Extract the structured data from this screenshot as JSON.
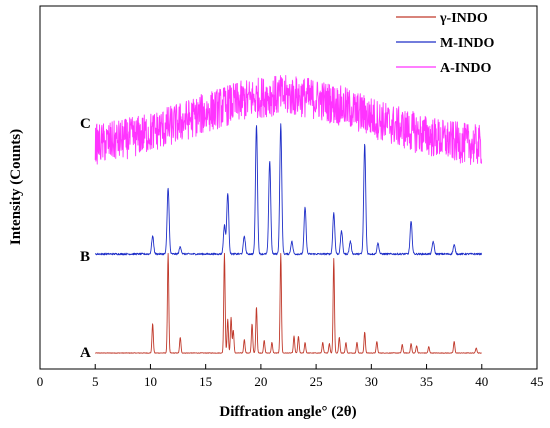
{
  "chart_data": {
    "type": "line",
    "xlabel": "Diffration angle° (2θ)",
    "ylabel": "Intensity (Counts)",
    "xlim": [
      0,
      45
    ],
    "xticks": [
      0,
      5,
      10,
      15,
      20,
      25,
      30,
      35,
      40,
      45
    ],
    "y_tick_labels": "none",
    "legend_position": "top-right",
    "series": [
      {
        "name": "γ-INDO",
        "curve_label": "A",
        "color": "#c0392b",
        "x_range": [
          5,
          40
        ],
        "baseline": 0,
        "peaks": [
          [
            10.2,
            0.28
          ],
          [
            11.6,
            0.95
          ],
          [
            12.7,
            0.15
          ],
          [
            16.7,
            0.95
          ],
          [
            17.0,
            0.32
          ],
          [
            17.3,
            0.34
          ],
          [
            17.5,
            0.22
          ],
          [
            18.5,
            0.13
          ],
          [
            19.2,
            0.28
          ],
          [
            19.6,
            0.44
          ],
          [
            20.3,
            0.12
          ],
          [
            21.0,
            0.1
          ],
          [
            21.8,
            0.95
          ],
          [
            23.0,
            0.16
          ],
          [
            23.4,
            0.16
          ],
          [
            24.0,
            0.1
          ],
          [
            25.6,
            0.1
          ],
          [
            26.2,
            0.09
          ],
          [
            26.6,
            0.9
          ],
          [
            27.1,
            0.15
          ],
          [
            27.7,
            0.1
          ],
          [
            28.7,
            0.1
          ],
          [
            29.4,
            0.2
          ],
          [
            30.5,
            0.11
          ],
          [
            32.8,
            0.08
          ],
          [
            33.6,
            0.09
          ],
          [
            34.1,
            0.07
          ],
          [
            35.2,
            0.06
          ],
          [
            37.5,
            0.11
          ],
          [
            39.5,
            0.05
          ]
        ]
      },
      {
        "name": "M-INDO",
        "curve_label": "B",
        "color": "#1f2fc8",
        "x_range": [
          5,
          40
        ],
        "baseline": 0,
        "peaks": [
          [
            10.2,
            0.1
          ],
          [
            11.6,
            0.37
          ],
          [
            12.7,
            0.04
          ],
          [
            16.7,
            0.16
          ],
          [
            17.0,
            0.34
          ],
          [
            18.5,
            0.1
          ],
          [
            19.6,
            0.72
          ],
          [
            20.8,
            0.52
          ],
          [
            21.8,
            0.72
          ],
          [
            22.8,
            0.07
          ],
          [
            24.0,
            0.26
          ],
          [
            26.6,
            0.23
          ],
          [
            27.3,
            0.13
          ],
          [
            28.1,
            0.07
          ],
          [
            29.4,
            0.61
          ],
          [
            30.6,
            0.06
          ],
          [
            33.6,
            0.18
          ],
          [
            35.6,
            0.07
          ],
          [
            37.5,
            0.05
          ]
        ]
      },
      {
        "name": "A-INDO",
        "curve_label": "C",
        "color": "#ff33ff",
        "x_range": [
          5,
          40
        ],
        "baseline": 0,
        "amorphous_hump": {
          "center": 22,
          "height": 0.32,
          "width": 8
        },
        "noise_amplitude": 0.12
      }
    ]
  },
  "legend": {
    "items": [
      {
        "label": "γ-INDO",
        "color": "#c0392b"
      },
      {
        "label": "M-INDO",
        "color": "#1f2fc8"
      },
      {
        "label": "A-INDO",
        "color": "#ff33ff"
      }
    ]
  },
  "labels": {
    "A": "A",
    "B": "B",
    "C": "C"
  }
}
